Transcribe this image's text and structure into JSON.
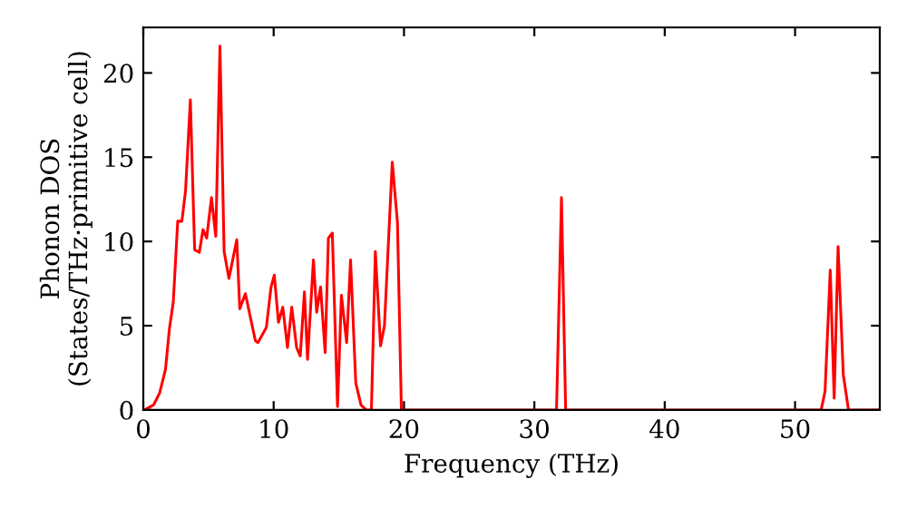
{
  "chart_data": {
    "type": "line",
    "xlabel": "Frequency (THz)",
    "ylabel": "Phonon DOS\n(States/THz·primitive cell)",
    "xlim": [
      0,
      56.5
    ],
    "ylim": [
      0,
      22.7
    ],
    "xticks": [
      0,
      10,
      20,
      30,
      40,
      50
    ],
    "yticks": [
      0,
      5,
      10,
      15,
      20
    ],
    "grid": false,
    "marker": "none",
    "line_style": "solid",
    "series": [
      {
        "color": "#ff0000",
        "x": [
          0.09,
          0.79,
          1.25,
          1.7,
          2.0,
          2.3,
          2.64,
          2.96,
          3.24,
          3.61,
          3.94,
          4.3,
          4.58,
          4.86,
          5.23,
          5.56,
          5.88,
          6.2,
          6.57,
          7.17,
          7.4,
          7.83,
          8.6,
          8.8,
          9.44,
          9.8,
          10.05,
          10.37,
          10.7,
          11.06,
          11.39,
          11.76,
          12.04,
          12.36,
          12.6,
          13.05,
          13.3,
          13.6,
          13.95,
          14.2,
          14.5,
          14.9,
          15.2,
          15.6,
          15.9,
          16.3,
          16.7,
          17.1,
          17.5,
          17.8,
          18.2,
          18.5,
          19.1,
          19.5,
          19.8,
          31.7,
          32.08,
          32.4,
          52.0,
          52.3,
          52.7,
          53.0,
          53.3,
          53.7,
          54.1,
          56.5
        ],
        "values": [
          0.0,
          0.3,
          1.0,
          2.4,
          4.8,
          6.4,
          11.2,
          11.2,
          13.0,
          18.4,
          9.5,
          9.35,
          10.7,
          10.2,
          12.6,
          10.3,
          21.6,
          9.4,
          7.8,
          10.1,
          6.0,
          6.9,
          4.1,
          4.0,
          4.9,
          7.3,
          8.0,
          5.2,
          6.1,
          3.7,
          6.1,
          3.7,
          3.2,
          7.0,
          3.0,
          8.9,
          5.8,
          7.3,
          3.4,
          10.2,
          10.5,
          0.2,
          6.8,
          4.0,
          8.9,
          1.6,
          0.3,
          0.0,
          0.0,
          9.4,
          3.8,
          5.0,
          14.7,
          11.1,
          0.0,
          0.0,
          12.6,
          0.0,
          0.0,
          1.1,
          8.3,
          0.7,
          9.7,
          2.1,
          0.0,
          0.0
        ]
      }
    ]
  }
}
